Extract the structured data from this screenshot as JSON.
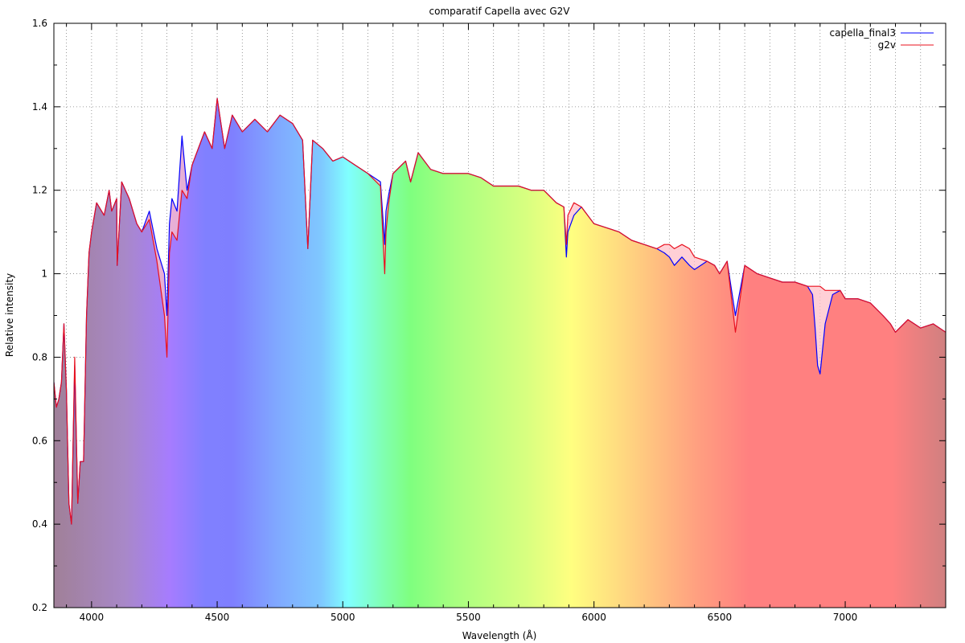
{
  "chart_data": {
    "type": "line",
    "title": "comparatif Capella avec G2V",
    "xlabel": "Wavelength (Å)",
    "ylabel": "Relative intensity",
    "xlim": [
      3850,
      7400
    ],
    "ylim": [
      0.2,
      1.6
    ],
    "x_ticks": [
      4000,
      4500,
      5000,
      5500,
      6000,
      6500,
      7000
    ],
    "y_ticks": [
      0.2,
      0.4,
      0.6,
      0.8,
      1,
      1.2,
      1.4,
      1.6
    ],
    "x_tick_labels": [
      "4000",
      "4500",
      "5000",
      "5500",
      "6000",
      "6500",
      "7000"
    ],
    "y_tick_labels": [
      "0.2",
      "0.4",
      "0.6",
      "0.8",
      "1",
      "1.2",
      "1.4",
      "1.6"
    ],
    "grid": true,
    "legend_position": "top-right",
    "background": "visible-spectrum gradient under the curve",
    "series": [
      {
        "name": "capella_final3",
        "color": "#0000ff",
        "x": [
          3850,
          3860,
          3870,
          3880,
          3890,
          3900,
          3910,
          3920,
          3933,
          3945,
          3955,
          3968,
          3980,
          3990,
          4000,
          4020,
          4050,
          4070,
          4080,
          4100,
          4102,
          4120,
          4150,
          4180,
          4200,
          4230,
          4260,
          4290,
          4300,
          4310,
          4320,
          4340,
          4360,
          4380,
          4400,
          4450,
          4480,
          4500,
          4530,
          4560,
          4600,
          4650,
          4700,
          4750,
          4800,
          4840,
          4861,
          4880,
          4920,
          4960,
          5000,
          5050,
          5100,
          5150,
          5167,
          5172,
          5183,
          5200,
          5250,
          5270,
          5300,
          5350,
          5400,
          5450,
          5500,
          5550,
          5600,
          5650,
          5700,
          5750,
          5800,
          5850,
          5880,
          5890,
          5896,
          5920,
          5950,
          6000,
          6050,
          6100,
          6150,
          6200,
          6250,
          6280,
          6300,
          6320,
          6350,
          6380,
          6400,
          6450,
          6480,
          6500,
          6530,
          6563,
          6600,
          6650,
          6700,
          6750,
          6800,
          6850,
          6870,
          6880,
          6890,
          6900,
          6920,
          6950,
          6980,
          7000,
          7050,
          7100,
          7150,
          7180,
          7200,
          7250,
          7300,
          7350,
          7400
        ],
        "y": [
          0.74,
          0.68,
          0.7,
          0.74,
          0.88,
          0.72,
          0.45,
          0.4,
          0.78,
          0.45,
          0.55,
          0.55,
          0.9,
          1.05,
          1.1,
          1.17,
          1.14,
          1.2,
          1.15,
          1.18,
          1.02,
          1.22,
          1.18,
          1.12,
          1.1,
          1.15,
          1.06,
          1.0,
          0.9,
          1.12,
          1.18,
          1.15,
          1.33,
          1.2,
          1.26,
          1.34,
          1.3,
          1.42,
          1.3,
          1.38,
          1.34,
          1.37,
          1.34,
          1.38,
          1.36,
          1.32,
          1.06,
          1.32,
          1.3,
          1.27,
          1.28,
          1.26,
          1.24,
          1.22,
          1.07,
          1.15,
          1.19,
          1.24,
          1.27,
          1.22,
          1.29,
          1.25,
          1.24,
          1.24,
          1.24,
          1.23,
          1.21,
          1.21,
          1.21,
          1.2,
          1.2,
          1.17,
          1.16,
          1.04,
          1.1,
          1.14,
          1.16,
          1.12,
          1.11,
          1.1,
          1.08,
          1.07,
          1.06,
          1.05,
          1.04,
          1.02,
          1.04,
          1.02,
          1.01,
          1.03,
          1.02,
          1.0,
          1.03,
          0.9,
          1.02,
          1.0,
          0.99,
          0.98,
          0.98,
          0.97,
          0.95,
          0.87,
          0.78,
          0.76,
          0.88,
          0.95,
          0.96,
          0.94,
          0.94,
          0.93,
          0.9,
          0.88,
          0.86,
          0.89,
          0.87,
          0.88,
          0.86
        ]
      },
      {
        "name": "g2v",
        "color": "#e8101e",
        "x": [
          3850,
          3860,
          3870,
          3880,
          3890,
          3900,
          3910,
          3920,
          3933,
          3945,
          3955,
          3968,
          3980,
          3990,
          4000,
          4020,
          4050,
          4070,
          4080,
          4100,
          4102,
          4120,
          4150,
          4180,
          4200,
          4230,
          4260,
          4290,
          4300,
          4310,
          4320,
          4340,
          4360,
          4380,
          4400,
          4450,
          4480,
          4500,
          4530,
          4560,
          4600,
          4650,
          4700,
          4750,
          4800,
          4840,
          4861,
          4880,
          4920,
          4960,
          5000,
          5050,
          5100,
          5150,
          5167,
          5172,
          5183,
          5200,
          5250,
          5270,
          5300,
          5350,
          5400,
          5450,
          5500,
          5550,
          5600,
          5650,
          5700,
          5750,
          5800,
          5850,
          5880,
          5890,
          5896,
          5920,
          5950,
          6000,
          6050,
          6100,
          6150,
          6200,
          6250,
          6280,
          6300,
          6320,
          6350,
          6380,
          6400,
          6450,
          6480,
          6500,
          6530,
          6563,
          6600,
          6650,
          6700,
          6750,
          6800,
          6850,
          6870,
          6880,
          6890,
          6900,
          6920,
          6950,
          6980,
          7000,
          7050,
          7100,
          7150,
          7180,
          7200,
          7250,
          7300,
          7350,
          7400
        ],
        "y": [
          0.74,
          0.68,
          0.7,
          0.74,
          0.88,
          0.72,
          0.45,
          0.4,
          0.8,
          0.45,
          0.55,
          0.55,
          0.9,
          1.05,
          1.1,
          1.17,
          1.14,
          1.2,
          1.15,
          1.18,
          1.02,
          1.22,
          1.18,
          1.12,
          1.1,
          1.13,
          1.03,
          0.9,
          0.8,
          1.05,
          1.1,
          1.08,
          1.2,
          1.18,
          1.26,
          1.34,
          1.3,
          1.42,
          1.3,
          1.38,
          1.34,
          1.37,
          1.34,
          1.38,
          1.36,
          1.32,
          1.06,
          1.32,
          1.3,
          1.27,
          1.28,
          1.26,
          1.24,
          1.21,
          1.0,
          1.1,
          1.17,
          1.24,
          1.27,
          1.22,
          1.29,
          1.25,
          1.24,
          1.24,
          1.24,
          1.23,
          1.21,
          1.21,
          1.21,
          1.2,
          1.2,
          1.17,
          1.16,
          1.07,
          1.14,
          1.17,
          1.16,
          1.12,
          1.11,
          1.1,
          1.08,
          1.07,
          1.06,
          1.07,
          1.07,
          1.06,
          1.07,
          1.06,
          1.04,
          1.03,
          1.02,
          1.0,
          1.03,
          0.86,
          1.02,
          1.0,
          0.99,
          0.98,
          0.98,
          0.97,
          0.97,
          0.97,
          0.97,
          0.97,
          0.96,
          0.96,
          0.96,
          0.94,
          0.94,
          0.93,
          0.9,
          0.88,
          0.86,
          0.89,
          0.87,
          0.88,
          0.86
        ]
      }
    ]
  }
}
